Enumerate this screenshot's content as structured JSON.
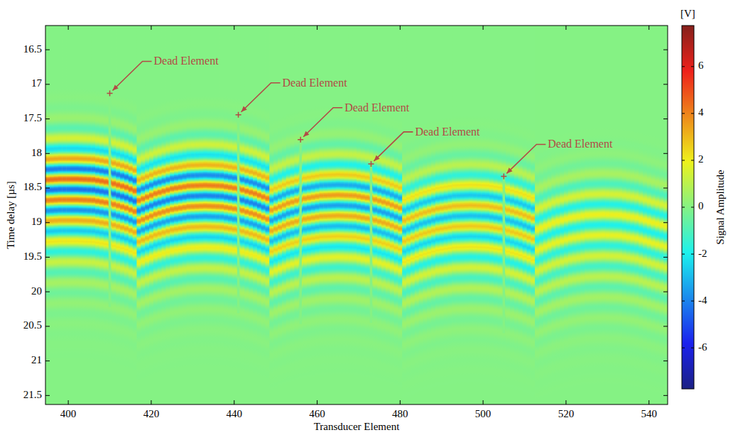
{
  "chart_data": {
    "type": "heatmap",
    "xlabel": "Transducer Element",
    "ylabel": "Time delay [µs]",
    "xlim": [
      394.5,
      544.5
    ],
    "xticks": [
      400,
      420,
      440,
      460,
      480,
      500,
      520,
      540
    ],
    "ylim": [
      16.15,
      21.63
    ],
    "yticks": [
      16.5,
      17,
      17.5,
      18,
      18.5,
      19,
      19.5,
      20,
      20.5,
      21,
      21.5
    ],
    "grid": false,
    "colorbar": {
      "label": "Signal Amplitude",
      "unit": "[V]",
      "lim": [
        -7.75,
        7.75
      ],
      "ticks": [
        -6,
        -4,
        -2,
        0,
        2,
        4,
        6
      ]
    },
    "segments": [
      {
        "x": [
          395,
          398,
          402,
          406,
          410,
          414,
          416
        ],
        "arrival": [
          18.38,
          18.37,
          18.37,
          18.38,
          18.42,
          18.49,
          18.54
        ],
        "amplitude": 4.5
      },
      {
        "x": [
          417,
          421,
          425,
          429,
          433,
          437,
          441,
          445,
          448
        ],
        "arrival": [
          18.68,
          18.58,
          18.51,
          18.47,
          18.46,
          18.47,
          18.51,
          18.58,
          18.65
        ],
        "amplitude": 4.2
      },
      {
        "x": [
          449,
          453,
          457,
          461,
          465,
          469,
          473,
          477,
          480
        ],
        "arrival": [
          18.82,
          18.72,
          18.65,
          18.61,
          18.6,
          18.61,
          18.65,
          18.72,
          18.79
        ],
        "amplitude": 3.6
      },
      {
        "x": [
          481,
          485,
          489,
          493,
          497,
          501,
          505,
          509,
          512
        ],
        "arrival": [
          18.97,
          18.87,
          18.8,
          18.76,
          18.75,
          18.76,
          18.8,
          18.87,
          18.94
        ],
        "amplitude": 3.0
      },
      {
        "x": [
          513,
          517,
          521,
          525,
          529,
          533,
          537,
          541,
          544
        ],
        "arrival": [
          19.1,
          19.0,
          18.93,
          18.89,
          18.88,
          18.89,
          18.93,
          19.0,
          19.05
        ],
        "amplitude": 2.0
      }
    ],
    "dead_elements": [
      410,
      441,
      456,
      473,
      505
    ],
    "annotations": [
      {
        "text": "Dead Element",
        "x": 410,
        "y": 17.13
      },
      {
        "text": "Dead Element",
        "x": 441,
        "y": 17.44
      },
      {
        "text": "Dead Element",
        "x": 456,
        "y": 17.8
      },
      {
        "text": "Dead Element",
        "x": 473,
        "y": 18.15
      },
      {
        "text": "Dead Element",
        "x": 505,
        "y": 18.33
      }
    ]
  }
}
